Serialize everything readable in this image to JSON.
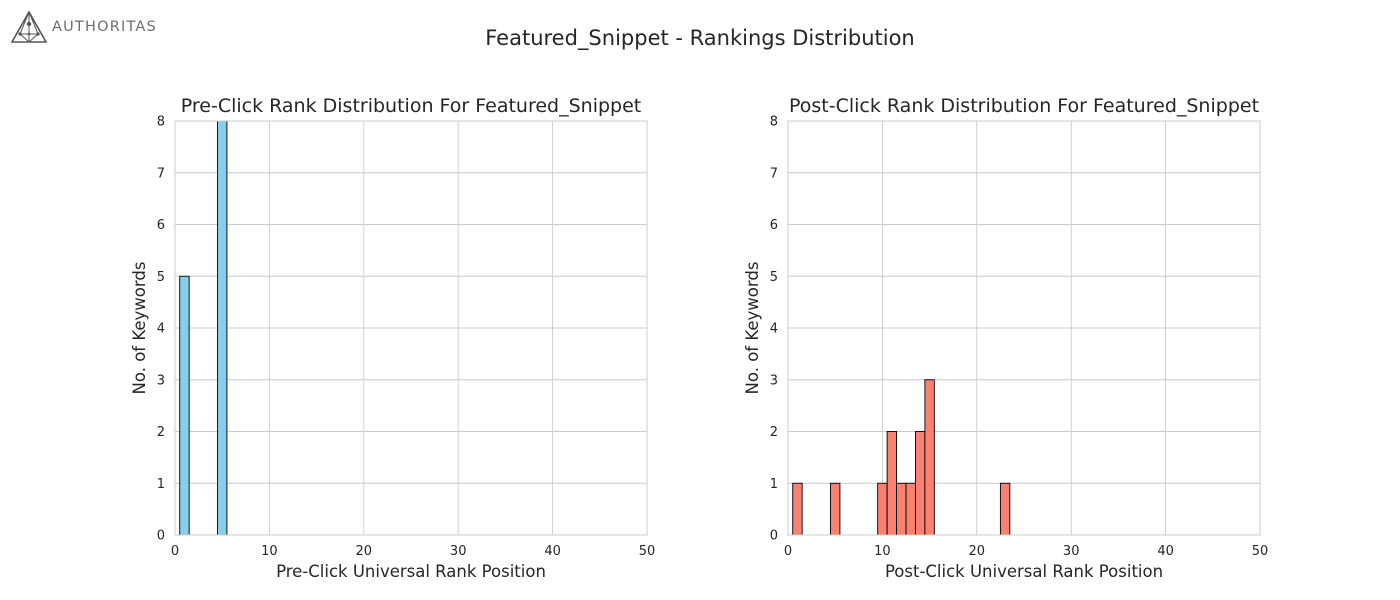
{
  "logo": {
    "text": "AUTHORITAS",
    "icon": "authoritas-triangle-logo-icon"
  },
  "suptitle": "Featured_Snippet - Rankings Distribution",
  "chart_data": [
    {
      "type": "bar",
      "title": "Pre-Click Rank Distribution For Featured_Snippet",
      "xlabel": "Pre-Click Universal Rank Position",
      "ylabel": "No. of Keywords",
      "xlim": [
        0,
        50
      ],
      "ylim": [
        0,
        8
      ],
      "xticks": [
        0,
        10,
        20,
        30,
        40,
        50
      ],
      "yticks": [
        0,
        1,
        2,
        3,
        4,
        5,
        6,
        7,
        8
      ],
      "grid": true,
      "color": "#87CEEB",
      "bins": [
        {
          "x0": 0.5,
          "x1": 1.5,
          "value": 5
        },
        {
          "x0": 4.5,
          "x1": 5.5,
          "value": 8
        }
      ]
    },
    {
      "type": "bar",
      "title": "Post-Click Rank Distribution For Featured_Snippet",
      "xlabel": "Post-Click Universal Rank Position",
      "ylabel": "No. of Keywords",
      "xlim": [
        0,
        50
      ],
      "ylim": [
        0,
        8
      ],
      "xticks": [
        0,
        10,
        20,
        30,
        40,
        50
      ],
      "yticks": [
        0,
        1,
        2,
        3,
        4,
        5,
        6,
        7,
        8
      ],
      "grid": true,
      "color": "#FA8072",
      "bins": [
        {
          "x0": 0.5,
          "x1": 1.5,
          "value": 1
        },
        {
          "x0": 4.5,
          "x1": 5.5,
          "value": 1
        },
        {
          "x0": 9.5,
          "x1": 10.5,
          "value": 1
        },
        {
          "x0": 10.5,
          "x1": 11.5,
          "value": 2
        },
        {
          "x0": 11.5,
          "x1": 12.5,
          "value": 1
        },
        {
          "x0": 12.5,
          "x1": 13.5,
          "value": 1
        },
        {
          "x0": 13.5,
          "x1": 14.5,
          "value": 2
        },
        {
          "x0": 14.5,
          "x1": 15.5,
          "value": 3
        },
        {
          "x0": 22.5,
          "x1": 23.5,
          "value": 1
        }
      ]
    }
  ]
}
